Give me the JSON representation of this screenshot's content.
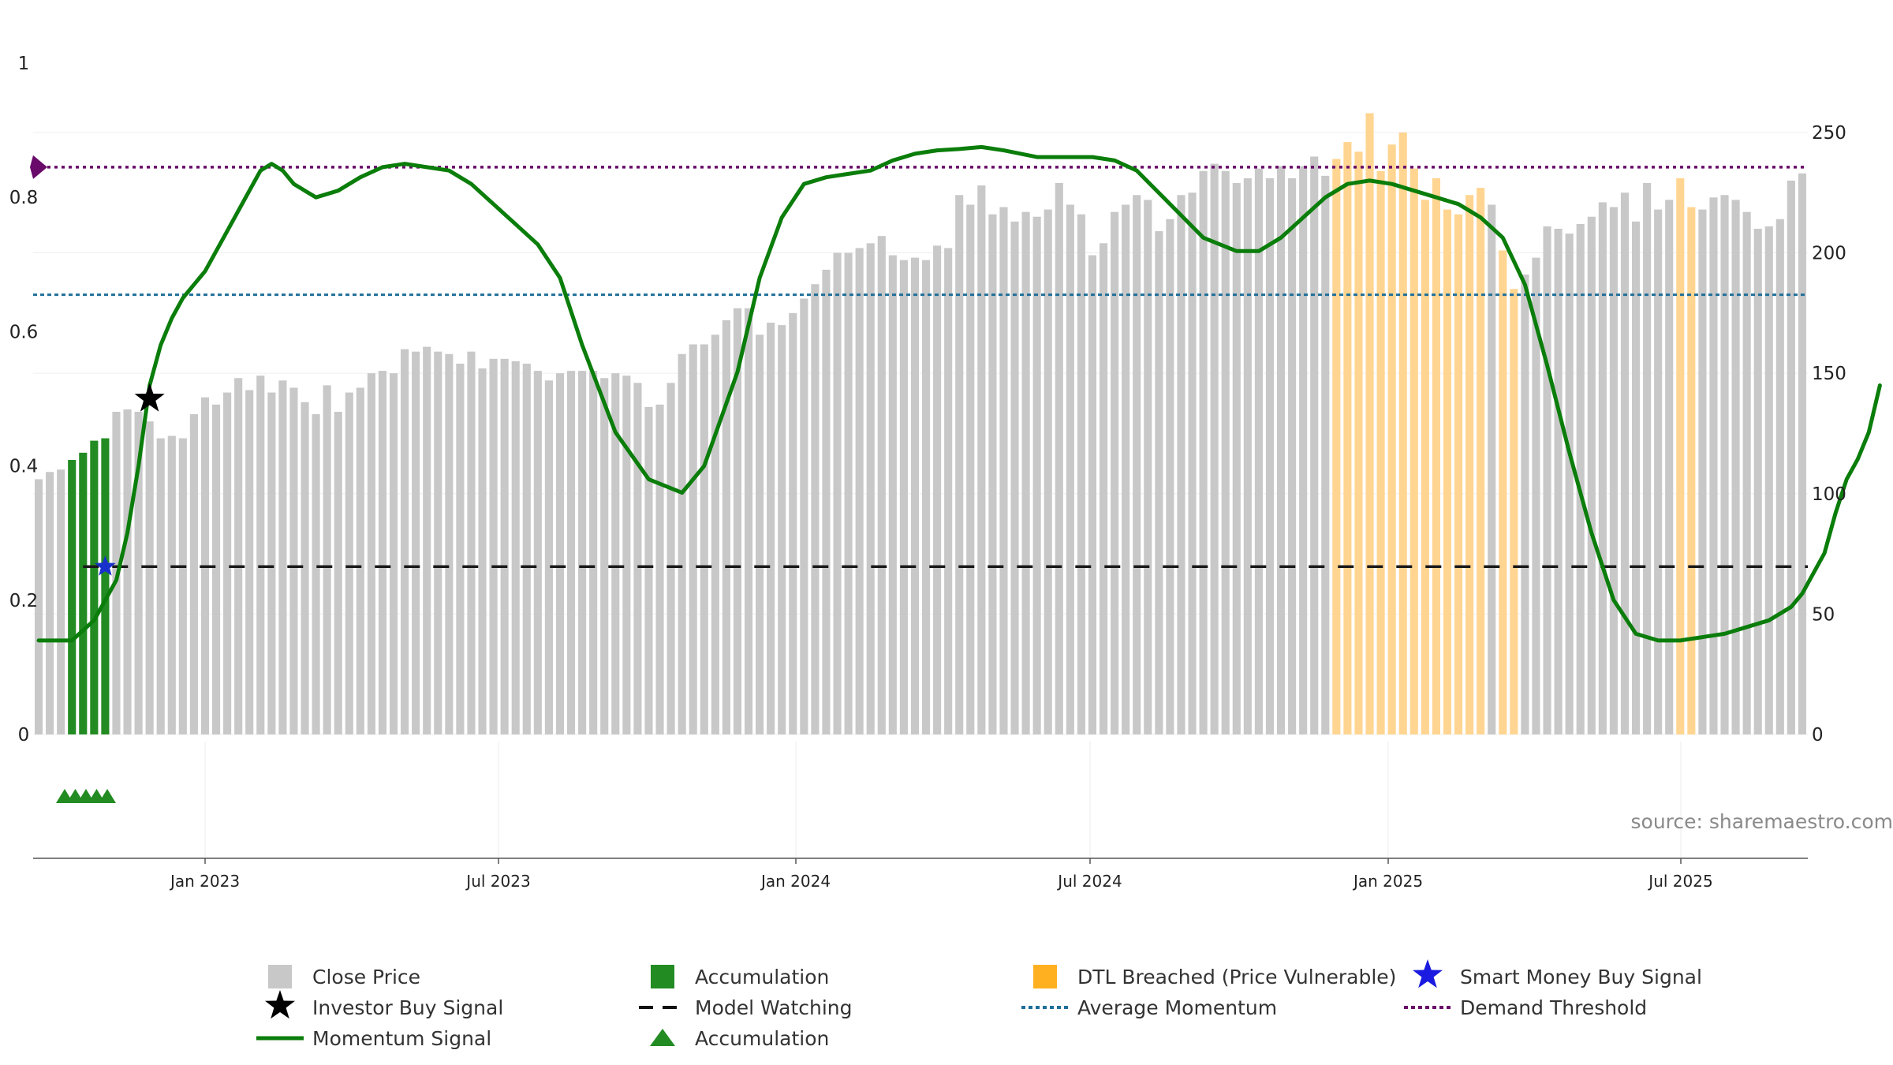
{
  "chart_data": {
    "type": "bar",
    "title": "",
    "source": "source: sharemaestro.com",
    "x_ticks": [
      "Jan 2023",
      "Jul 2023",
      "Jan 2024",
      "Jul 2024",
      "Jan 2025",
      "Jul 2025"
    ],
    "left_axis": {
      "ticks": [
        "0",
        "0.2",
        "0.4",
        "0.6",
        "0.8",
        "1"
      ],
      "range": [
        0,
        1
      ]
    },
    "right_axis": {
      "ticks": [
        "0",
        "50",
        "100",
        "150",
        "200",
        "250"
      ],
      "range": [
        0,
        278.8
      ]
    },
    "close_price": [
      106,
      109,
      110,
      114,
      117,
      122,
      123,
      134,
      135,
      134,
      130,
      123,
      124,
      123,
      133,
      140,
      137,
      142,
      148,
      143,
      149,
      142,
      147,
      144,
      138,
      133,
      145,
      134,
      142,
      144,
      150,
      151,
      150,
      160,
      159,
      161,
      159,
      158,
      154,
      159,
      152,
      156,
      156,
      155,
      154,
      151,
      147,
      150,
      151,
      151,
      151,
      148,
      150,
      149,
      146,
      136,
      137,
      146,
      158,
      162,
      162,
      166,
      172,
      177,
      177,
      166,
      171,
      170,
      175,
      181,
      187,
      193,
      200,
      200,
      202,
      204,
      207,
      199,
      197,
      198,
      197,
      203,
      202,
      224,
      220,
      228,
      216,
      219,
      213,
      217,
      215,
      218,
      229,
      220,
      216,
      199,
      204,
      217,
      220,
      224,
      222,
      209,
      214,
      224,
      225,
      234,
      237,
      234,
      229,
      231,
      235,
      231,
      236,
      231,
      236,
      240,
      232,
      239,
      246,
      242,
      258,
      234,
      245,
      250,
      235,
      222,
      231,
      218,
      216,
      224,
      227,
      220,
      201,
      185,
      191,
      198,
      211,
      210,
      208,
      212,
      215,
      221,
      219,
      225,
      213,
      229,
      218,
      222,
      231,
      219,
      218,
      223,
      224,
      222,
      217,
      210,
      211,
      214,
      230,
      233
    ],
    "dtl_breached_ranges": [
      [
        117,
        130
      ],
      [
        132,
        133
      ],
      [
        148,
        149
      ]
    ],
    "accumulation_bar_indices": [
      3,
      4,
      5,
      6
    ],
    "momentum_signal": {
      "x": [
        0,
        3,
        5,
        7,
        8,
        9,
        10,
        11,
        12,
        13,
        14,
        15,
        17,
        19,
        20,
        21,
        22,
        23,
        24,
        25,
        27,
        29,
        31,
        33,
        35,
        37,
        39,
        41,
        43,
        45,
        47,
        49,
        52,
        55,
        58,
        60,
        63,
        65,
        67,
        69,
        71,
        73,
        75,
        77,
        79,
        81,
        83,
        85,
        87,
        90,
        93,
        95,
        97,
        99,
        102,
        105,
        108,
        110,
        112,
        114,
        116,
        118,
        120,
        122,
        124,
        126,
        128,
        130,
        132,
        134,
        136,
        138,
        140,
        142,
        144,
        146,
        148,
        150,
        152,
        154,
        156,
        158,
        159,
        160,
        161,
        162,
        163,
        164,
        165,
        166
      ],
      "values": [
        0.14,
        0.14,
        0.17,
        0.23,
        0.3,
        0.4,
        0.52,
        0.58,
        0.62,
        0.65,
        0.67,
        0.69,
        0.75,
        0.81,
        0.84,
        0.85,
        0.84,
        0.82,
        0.81,
        0.8,
        0.81,
        0.83,
        0.845,
        0.85,
        0.845,
        0.84,
        0.82,
        0.79,
        0.76,
        0.73,
        0.68,
        0.58,
        0.45,
        0.38,
        0.36,
        0.4,
        0.54,
        0.68,
        0.77,
        0.82,
        0.83,
        0.835,
        0.84,
        0.855,
        0.865,
        0.87,
        0.872,
        0.875,
        0.87,
        0.86,
        0.86,
        0.86,
        0.855,
        0.84,
        0.79,
        0.74,
        0.72,
        0.72,
        0.74,
        0.77,
        0.8,
        0.82,
        0.825,
        0.82,
        0.81,
        0.8,
        0.79,
        0.77,
        0.74,
        0.67,
        0.55,
        0.42,
        0.3,
        0.2,
        0.15,
        0.14,
        0.14,
        0.145,
        0.15,
        0.16,
        0.17,
        0.19,
        0.21,
        0.24,
        0.27,
        0.33,
        0.38,
        0.41,
        0.45,
        0.52
      ]
    },
    "model_watching": {
      "value": 0.25,
      "label": "Model Watching"
    },
    "average_momentum": {
      "value": 0.655,
      "label": "Average Momentum"
    },
    "demand_threshold": {
      "value": 0.845,
      "label": "Demand Threshold"
    },
    "investor_buy_signal": {
      "index": 10,
      "value": 0.5
    },
    "smart_money_buy_signal": {
      "index": 6,
      "value": 0.25
    },
    "accumulation_markers": [
      3,
      4,
      5,
      6,
      7
    ],
    "colors": {
      "close_price": "#c8c8c8",
      "accumulation": "#228b22",
      "dtl": "#ffd591",
      "momentum": "#0a7d0a",
      "average": "#1f6f9a",
      "threshold": "#6a0a6a",
      "smart_money": "#1830cc"
    },
    "legend": [
      {
        "key": "close",
        "label": "Close Price"
      },
      {
        "key": "accum_bar",
        "label": "Accumulation"
      },
      {
        "key": "dtl",
        "label": "DTL Breached (Price Vulnerable)"
      },
      {
        "key": "smart",
        "label": "Smart Money Buy Signal"
      },
      {
        "key": "investor",
        "label": "Investor Buy Signal"
      },
      {
        "key": "watching",
        "label": "Model Watching"
      },
      {
        "key": "average",
        "label": "Average Momentum"
      },
      {
        "key": "threshold",
        "label": "Demand Threshold"
      },
      {
        "key": "momentum",
        "label": "Momentum Signal"
      },
      {
        "key": "accum_marker",
        "label": "Accumulation"
      }
    ]
  }
}
